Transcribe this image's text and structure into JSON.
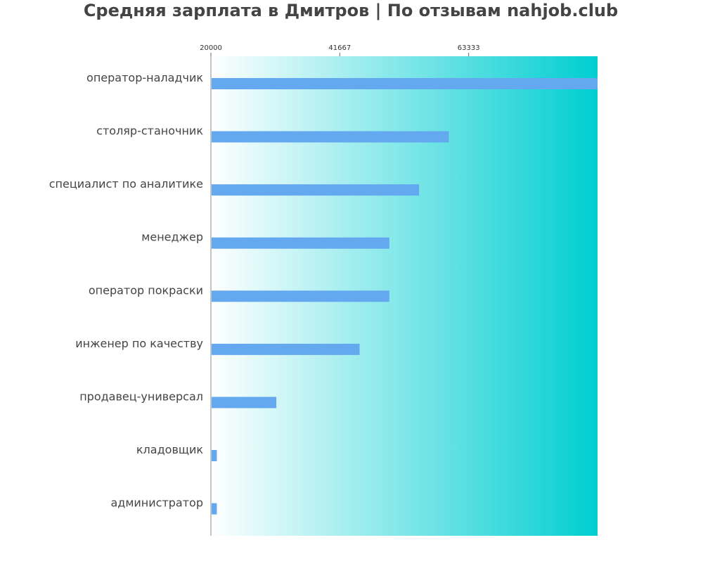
{
  "chart_data": {
    "type": "bar",
    "orientation": "horizontal",
    "title": "Средняя зарплата в Дмитров | По отзывам nahjob.club",
    "categories": [
      "оператор-наладчик",
      "столяр-станочник",
      "специалист по аналитике",
      "менеджер",
      "оператор покраски",
      "инженер по качеству",
      "продавец-универсал",
      "кладовщик",
      "администратор"
    ],
    "values": [
      85000,
      60000,
      55000,
      50000,
      50000,
      45000,
      31000,
      21000,
      21000
    ],
    "xlim": [
      20000,
      85000
    ],
    "xticks": [
      "20000",
      "41667",
      "63333"
    ],
    "tick_position": "top",
    "grid": false,
    "background_gradient": [
      "#ffffff",
      "#00ced1"
    ],
    "bar_color": "#64a8f0"
  }
}
